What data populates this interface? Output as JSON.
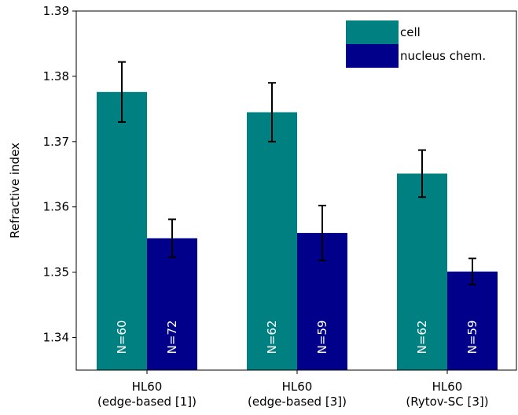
{
  "chart_data": {
    "type": "bar",
    "title": "",
    "xlabel": "",
    "ylabel": "Refractive index",
    "ylim": [
      1.335,
      1.39
    ],
    "yticks": [
      "1.34",
      "1.35",
      "1.36",
      "1.37",
      "1.38",
      "1.39"
    ],
    "categories": [
      [
        "HL60",
        "(edge-based [1])"
      ],
      [
        "HL60",
        "(edge-based [3])"
      ],
      [
        "HL60",
        "(Rytov-SC [3])"
      ]
    ],
    "series": [
      {
        "name": "cell",
        "color": "#008080",
        "values": [
          1.3776,
          1.3745,
          1.3651
        ],
        "errors": [
          0.0046,
          0.0045,
          0.0036
        ],
        "n_labels": [
          "N=60",
          "N=62",
          "N=62"
        ]
      },
      {
        "name": "nucleus chem.",
        "color": "#00008b",
        "values": [
          1.3552,
          1.356,
          1.3501
        ],
        "errors": [
          0.0029,
          0.0042,
          0.002
        ],
        "n_labels": [
          "N=72",
          "N=59",
          "N=59"
        ]
      }
    ],
    "grid": false,
    "legend_position": "top-right",
    "error_bars": true
  }
}
